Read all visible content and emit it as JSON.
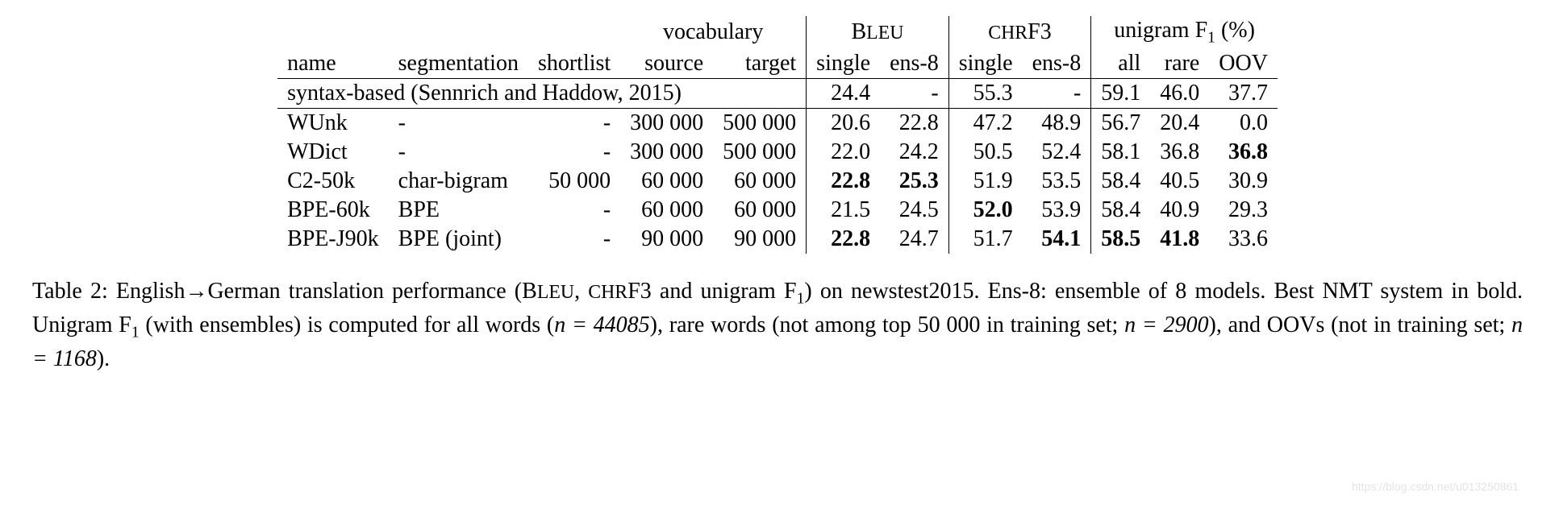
{
  "header": {
    "group_vocabulary": "vocabulary",
    "group_bleu": "BLEU",
    "group_chrf3": "CHRF3",
    "group_unigram": "unigram F",
    "group_unigram_sub": "1",
    "group_unigram_suffix": " (%)",
    "col_name": "name",
    "col_segmentation": "segmentation",
    "col_shortlist": "shortlist",
    "col_source": "source",
    "col_target": "target",
    "col_single1": "single",
    "col_ens8_1": "ens-8",
    "col_single2": "single",
    "col_ens8_2": "ens-8",
    "col_all": "all",
    "col_rare": "rare",
    "col_oov": "OOV"
  },
  "syntax": {
    "label": "syntax-based (Sennrich and Haddow, 2015)",
    "bleu_single": "24.4",
    "bleu_ens8": "-",
    "chrf_single": "55.3",
    "chrf_ens8": "-",
    "f1_all": "59.1",
    "f1_rare": "46.0",
    "f1_oov": "37.7"
  },
  "rows": [
    {
      "name": "WUnk",
      "segmentation": "-",
      "shortlist": "-",
      "source": "300 000",
      "target": "500 000",
      "bleu_single": "20.6",
      "bleu_ens8": "22.8",
      "chrf_single": "47.2",
      "chrf_ens8": "48.9",
      "f1_all": "56.7",
      "f1_rare": "20.4",
      "f1_oov": "0.0",
      "bold": {}
    },
    {
      "name": "WDict",
      "segmentation": "-",
      "shortlist": "-",
      "source": "300 000",
      "target": "500 000",
      "bleu_single": "22.0",
      "bleu_ens8": "24.2",
      "chrf_single": "50.5",
      "chrf_ens8": "52.4",
      "f1_all": "58.1",
      "f1_rare": "36.8",
      "f1_oov": "36.8",
      "bold": {
        "f1_oov": true
      }
    },
    {
      "name": "C2-50k",
      "segmentation": "char-bigram",
      "shortlist": "50 000",
      "source": "60 000",
      "target": "60 000",
      "bleu_single": "22.8",
      "bleu_ens8": "25.3",
      "chrf_single": "51.9",
      "chrf_ens8": "53.5",
      "f1_all": "58.4",
      "f1_rare": "40.5",
      "f1_oov": "30.9",
      "bold": {
        "bleu_single": true,
        "bleu_ens8": true
      }
    },
    {
      "name": "BPE-60k",
      "segmentation": "BPE",
      "shortlist": "-",
      "source": "60 000",
      "target": "60 000",
      "bleu_single": "21.5",
      "bleu_ens8": "24.5",
      "chrf_single": "52.0",
      "chrf_ens8": "53.9",
      "f1_all": "58.4",
      "f1_rare": "40.9",
      "f1_oov": "29.3",
      "bold": {
        "chrf_single": true
      }
    },
    {
      "name": "BPE-J90k",
      "segmentation": "BPE (joint)",
      "shortlist": "-",
      "source": "90 000",
      "target": "90 000",
      "bleu_single": "22.8",
      "bleu_ens8": "24.7",
      "chrf_single": "51.7",
      "chrf_ens8": "54.1",
      "f1_all": "58.5",
      "f1_rare": "41.8",
      "f1_oov": "33.6",
      "bold": {
        "bleu_single": true,
        "chrf_ens8": true,
        "f1_all": true,
        "f1_rare": true
      }
    }
  ],
  "caption": {
    "prefix": "Table 2:  English→German translation performance (",
    "bleu": "BLEU",
    "mid1": ", ",
    "chrf3": "CHRF3",
    "mid2": " and unigram F",
    "sub1": "1",
    "mid3": ") on newstest2015. Ens-8: ensemble of 8 models. Best NMT system in bold. Unigram F",
    "sub2": "1",
    "mid4": " (with ensembles) is computed for all words (",
    "n1": "n = 44085",
    "mid5": "), rare words (not among top 50 000 in training set; ",
    "n2": "n = 2900",
    "mid6": "), and OOVs (not in training set; ",
    "n3": "n = 1168",
    "suffix": ")."
  },
  "watermark": "https://blog.csdn.net/u013250861"
}
